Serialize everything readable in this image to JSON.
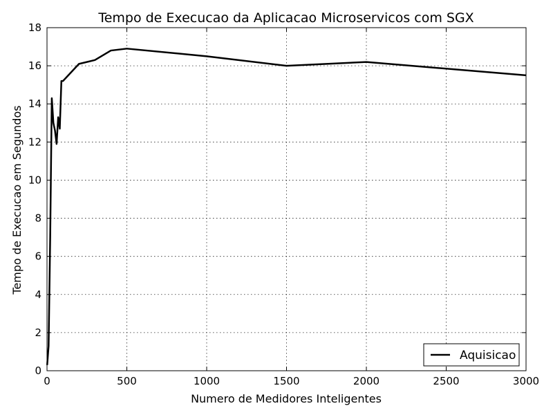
{
  "chart_data": {
    "type": "line",
    "title": "Tempo de Execucao da Aplicacao Microservicos com SGX",
    "xlabel": "Numero de Medidores Inteligentes",
    "ylabel": "Tempo de Execucao em Segundos",
    "xlim": [
      0,
      3000
    ],
    "ylim": [
      0,
      18
    ],
    "xticks": [
      0,
      500,
      1000,
      1500,
      2000,
      2500,
      3000
    ],
    "yticks": [
      0,
      2,
      4,
      6,
      8,
      10,
      12,
      14,
      16,
      18
    ],
    "grid": true,
    "legend_position": "lower-right",
    "series": [
      {
        "name": "Aquisicao",
        "color": "#000000",
        "x": [
          1,
          10,
          20,
          30,
          40,
          50,
          60,
          70,
          80,
          90,
          100,
          200,
          300,
          400,
          500,
          1000,
          1500,
          2000,
          3000
        ],
        "y": [
          0.3,
          1.3,
          7.0,
          14.3,
          13.0,
          12.6,
          11.9,
          13.3,
          12.7,
          15.2,
          15.2,
          16.1,
          16.3,
          16.8,
          16.9,
          16.5,
          16.0,
          16.2,
          15.5
        ]
      }
    ]
  }
}
